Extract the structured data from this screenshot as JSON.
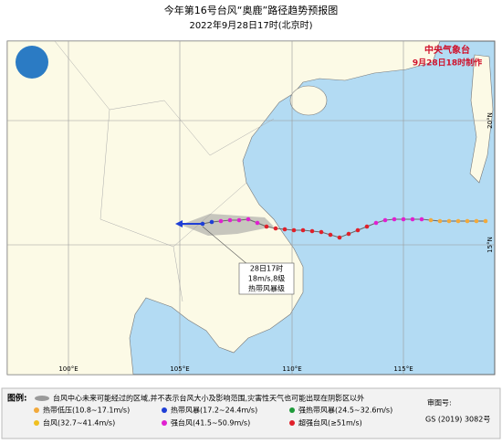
{
  "header": {
    "title": "今年第16号台风“奥鹿”路径趋势预报图",
    "subtitle": "2022年9月28日17时(北京时)"
  },
  "agency": {
    "name": "中央气象台",
    "made": "9月28日18时制作"
  },
  "annotation": [
    "28日17时",
    "18m/s,8级",
    "热带风暴级"
  ],
  "grid_labels": {
    "lon": [
      "100°E",
      "105°E",
      "110°E",
      "115°E"
    ],
    "lat": [
      "20°N",
      "15°N"
    ]
  },
  "legend": {
    "title": "图例:",
    "cone": "台风中心未来可能经过的区域,并不表示台风大小及影响范围,灾害性天气也可能出现在阴影区以外",
    "items": [
      {
        "label": "热带低压(10.8~17.1m/s)",
        "color": "#f2a93b"
      },
      {
        "label": "热带风暴(17.2~24.4m/s)",
        "color": "#1f3fd6"
      },
      {
        "label": "强热带风暴(24.5~32.6m/s)",
        "color": "#1e9a3a"
      },
      {
        "label": "台风(32.7~41.4m/s)",
        "color": "#f0c020"
      },
      {
        "label": "强台风(41.5~50.9m/s)",
        "color": "#e020d0"
      },
      {
        "label": "超强台风(≥51m/s)",
        "color": "#e0202a"
      }
    ],
    "review": {
      "label": "审图号:",
      "code": "GS (2019) 3082号"
    }
  }
}
